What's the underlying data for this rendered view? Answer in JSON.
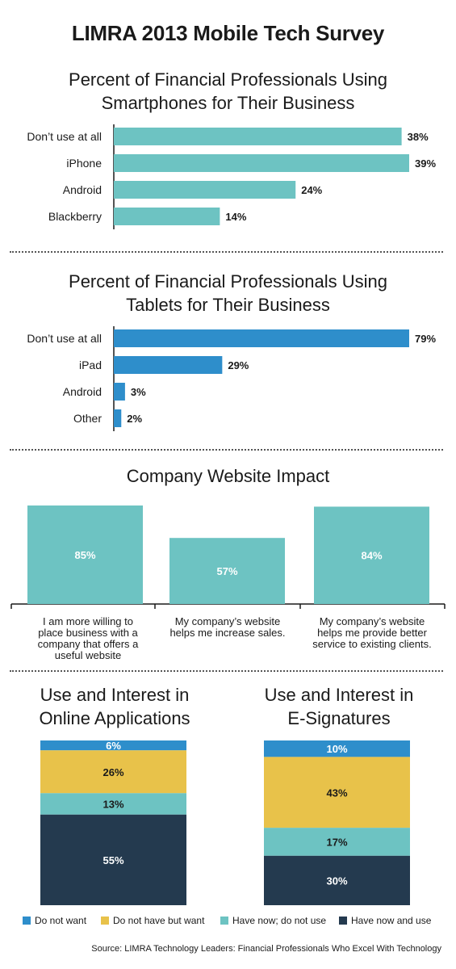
{
  "title": "LIMRA 2013 Mobile Tech Survey",
  "colors": {
    "teal": "#6dc3c2",
    "blue": "#2e8ecb",
    "yellow": "#e8c24a",
    "navy": "#243a4f"
  },
  "source": "Source: LIMRA Technology Leaders: Financial Professionals Who Excel With Technology",
  "chart_data": [
    {
      "type": "bar",
      "orientation": "horizontal",
      "title": "Percent of Financial Professionals Using Smartphones for Their Business",
      "title_lines": [
        "Percent of Financial Professionals Using",
        "Smartphones for Their Business"
      ],
      "categories": [
        "Don’t use at all",
        "iPhone",
        "Android",
        "Blackberry"
      ],
      "values": [
        38,
        39,
        24,
        14
      ],
      "labels": [
        "38%",
        "39%",
        "24%",
        "14%"
      ],
      "unit": "%",
      "color": "#6dc3c2",
      "xlim": [
        0,
        39
      ]
    },
    {
      "type": "bar",
      "orientation": "horizontal",
      "title": "Percent of Financial Professionals Using Tablets for Their Business",
      "title_lines": [
        "Percent of Financial Professionals Using",
        "Tablets for Their Business"
      ],
      "categories": [
        "Don’t use at all",
        "iPad",
        "Android",
        "Other"
      ],
      "values": [
        79,
        29,
        3,
        2
      ],
      "labels": [
        "79%",
        "29%",
        "3%",
        "2%"
      ],
      "unit": "%",
      "color": "#2e8ecb",
      "xlim": [
        0,
        79
      ]
    },
    {
      "type": "bar",
      "orientation": "vertical",
      "title": "Company Website Impact",
      "categories": [
        "I am more willing to place business with a company that offers a useful website",
        "My company’s website helps me increase sales.",
        "My company’s website helps me provide better service to existing clients."
      ],
      "category_lines": [
        [
          "I am more willing to",
          "place business with a",
          "company that offers a",
          "useful website"
        ],
        [
          "My company’s website",
          "helps me increase sales."
        ],
        [
          "My company’s website",
          "helps me provide better",
          "service to existing clients."
        ]
      ],
      "values": [
        85,
        57,
        84
      ],
      "labels": [
        "85%",
        "57%",
        "84%"
      ],
      "unit": "%",
      "color": "#6dc3c2",
      "ylim": [
        0,
        85
      ]
    },
    {
      "type": "bar",
      "orientation": "stacked-100",
      "title": "Use and Interest in Online Applications",
      "title_lines": [
        "Use and Interest in",
        "Online Applications"
      ],
      "series": [
        {
          "name": "Do not want",
          "value": 6,
          "label": "6%"
        },
        {
          "name": "Do not have but want",
          "value": 26,
          "label": "26%"
        },
        {
          "name": "Have now; do not use",
          "value": 13,
          "label": "13%"
        },
        {
          "name": "Have now and use",
          "value": 55,
          "label": "55%"
        }
      ]
    },
    {
      "type": "bar",
      "orientation": "stacked-100",
      "title": "Use and Interest in E-Signatures",
      "title_lines": [
        "Use and Interest in",
        "E-Signatures"
      ],
      "series": [
        {
          "name": "Do not want",
          "value": 10,
          "label": "10%"
        },
        {
          "name": "Do not have but want",
          "value": 43,
          "label": "43%"
        },
        {
          "name": "Have now; do not use",
          "value": 17,
          "label": "17%"
        },
        {
          "name": "Have now and use",
          "value": 30,
          "label": "30%"
        }
      ]
    }
  ],
  "legend": [
    {
      "name": "Do not want",
      "color": "#2e8ecb"
    },
    {
      "name": "Do not have but want",
      "color": "#e8c24a"
    },
    {
      "name": "Have now; do not use",
      "color": "#6dc3c2"
    },
    {
      "name": "Have now and use",
      "color": "#243a4f"
    }
  ]
}
